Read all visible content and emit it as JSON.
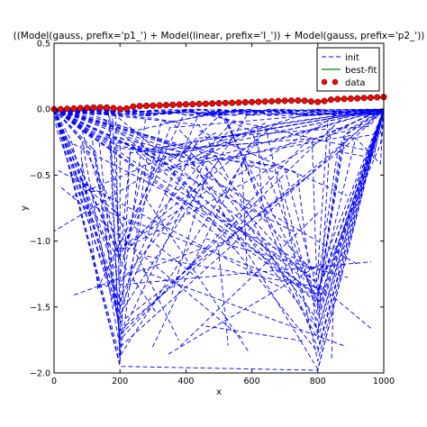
{
  "chart_data": {
    "type": "line",
    "title": "((Model(gauss, prefix='p1_') + Model(linear, prefix='l_')) + Model(gauss, prefix='p2_'))",
    "xlabel": "x",
    "ylabel": "y",
    "xlim": [
      0,
      1000
    ],
    "ylim": [
      -2.0,
      0.5
    ],
    "xticks": [
      0,
      200,
      400,
      600,
      800,
      1000
    ],
    "yticks": [
      -2.0,
      -1.5,
      -1.0,
      -0.5,
      0.0,
      0.5
    ],
    "xtick_labels": [
      "0",
      "200",
      "400",
      "600",
      "800",
      "1000"
    ],
    "ytick_labels": [
      "−2.0",
      "−1.5",
      "−1.0",
      "−0.5",
      "0.0",
      "0.5"
    ],
    "grid": false,
    "legend": {
      "location": "upper right",
      "entries": [
        {
          "label": "init",
          "style": "dashed",
          "color": "#0000ff"
        },
        {
          "label": "best-fit",
          "style": "solid",
          "color": "#008000"
        },
        {
          "label": "data",
          "style": "markers",
          "color": "#ff0000"
        }
      ]
    },
    "series": [
      {
        "name": "data",
        "color": "#ff0000",
        "marker": "circle",
        "x": [
          0,
          20,
          40,
          60,
          80,
          100,
          120,
          140,
          160,
          180,
          200,
          220,
          240,
          260,
          280,
          300,
          320,
          340,
          360,
          380,
          400,
          420,
          440,
          460,
          480,
          500,
          520,
          540,
          560,
          580,
          600,
          620,
          640,
          660,
          680,
          700,
          720,
          740,
          760,
          780,
          800,
          820,
          840,
          860,
          880,
          900,
          920,
          940,
          960,
          980,
          1000
        ],
        "y": [
          0.0,
          0.0,
          0.003,
          0.005,
          0.008,
          0.01,
          0.012,
          0.013,
          0.012,
          0.008,
          0.002,
          0.005,
          0.02,
          0.024,
          0.026,
          0.027,
          0.029,
          0.031,
          0.033,
          0.035,
          0.037,
          0.038,
          0.04,
          0.041,
          0.043,
          0.045,
          0.047,
          0.048,
          0.05,
          0.052,
          0.054,
          0.056,
          0.058,
          0.06,
          0.062,
          0.064,
          0.065,
          0.066,
          0.064,
          0.058,
          0.055,
          0.062,
          0.072,
          0.076,
          0.078,
          0.08,
          0.082,
          0.085,
          0.087,
          0.09,
          0.092
        ]
      },
      {
        "name": "best-fit",
        "color": "#008000",
        "style": "solid",
        "x": [
          0,
          50,
          100,
          150,
          180,
          200,
          220,
          250,
          300,
          400,
          500,
          600,
          700,
          750,
          780,
          800,
          820,
          850,
          900,
          1000
        ],
        "y": [
          0.0,
          0.004,
          0.01,
          0.012,
          0.009,
          0.004,
          0.009,
          0.022,
          0.028,
          0.037,
          0.045,
          0.054,
          0.064,
          0.066,
          0.062,
          0.057,
          0.063,
          0.074,
          0.08,
          0.092
        ]
      },
      {
        "name": "init",
        "color": "#0000ff",
        "style": "dashed",
        "x": [
          0,
          200,
          800,
          1000
        ],
        "y": [
          0.0,
          -1.95,
          -1.98,
          0.0
        ]
      }
    ]
  }
}
